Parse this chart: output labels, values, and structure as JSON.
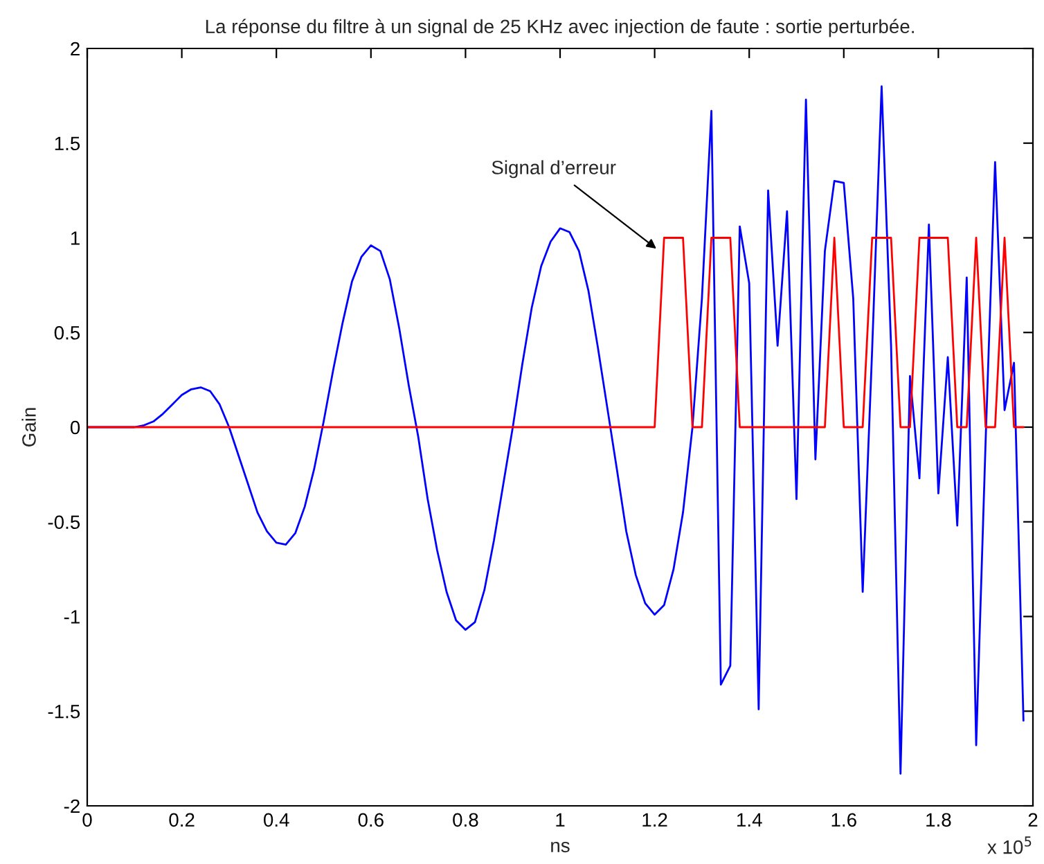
{
  "chart_data": {
    "type": "line",
    "title": "La réponse du filtre à un signal de 25 KHz avec injection de faute : sortie perturbée.",
    "xlabel": "ns",
    "ylabel": "Gain",
    "xlim": [
      0,
      2
    ],
    "xticks": [
      0,
      0.2,
      0.4,
      0.6,
      0.8,
      1,
      1.2,
      1.4,
      1.6,
      1.8,
      2
    ],
    "ylim": [
      -2,
      2
    ],
    "yticks": [
      -2,
      -1.5,
      -1,
      -0.5,
      0,
      0.5,
      1,
      1.5,
      2
    ],
    "grid": false,
    "line_style": "solid",
    "marker": "none",
    "annotations": [
      {
        "text": "Signal d’erreur",
        "x": 1.21,
        "y": 0.93
      },
      "x 10$^{5}$"
    ],
    "series": [
      {
        "color": "#0000ff",
        "x": [
          0,
          0.1,
          0.12,
          0.14,
          0.16,
          0.18,
          0.2,
          0.22,
          0.24,
          0.26,
          0.28,
          0.3,
          0.32,
          0.34,
          0.36,
          0.38,
          0.4,
          0.42,
          0.44,
          0.46,
          0.48,
          0.5,
          0.52,
          0.54,
          0.56,
          0.58,
          0.6,
          0.62,
          0.64,
          0.66,
          0.68,
          0.7,
          0.72,
          0.74,
          0.76,
          0.78,
          0.8,
          0.82,
          0.84,
          0.86,
          0.88,
          0.9,
          0.92,
          0.94,
          0.96,
          0.98,
          1,
          1.02,
          1.04,
          1.06,
          1.08,
          1.1,
          1.12,
          1.14,
          1.16,
          1.18,
          1.2,
          1.22,
          1.24,
          1.26,
          1.28,
          1.3,
          1.32,
          1.34,
          1.36,
          1.38,
          1.4,
          1.42,
          1.44,
          1.46,
          1.48,
          1.5,
          1.52,
          1.54,
          1.56,
          1.58,
          1.6,
          1.62,
          1.64,
          1.66,
          1.68,
          1.7,
          1.72,
          1.74,
          1.76,
          1.78,
          1.8,
          1.82,
          1.84,
          1.86,
          1.88,
          1.9,
          1.92,
          1.94,
          1.96,
          1.98
        ],
        "values": [
          0,
          0,
          0.01,
          0.03,
          0.07,
          0.12,
          0.17,
          0.2,
          0.21,
          0.19,
          0.12,
          0,
          -0.15,
          -0.3,
          -0.45,
          -0.55,
          -0.61,
          -0.62,
          -0.56,
          -0.42,
          -0.22,
          0.03,
          0.3,
          0.55,
          0.77,
          0.9,
          0.96,
          0.93,
          0.78,
          0.52,
          0.22,
          -0.05,
          -0.38,
          -0.65,
          -0.87,
          -1.02,
          -1.07,
          -1.03,
          -0.86,
          -0.6,
          -0.3,
          0,
          0.33,
          0.63,
          0.85,
          0.98,
          1.05,
          1.03,
          0.93,
          0.72,
          0.42,
          0.1,
          -0.22,
          -0.55,
          -0.78,
          -0.93,
          -0.99,
          -0.94,
          -0.75,
          -0.45,
          0,
          0.68,
          1.67,
          -1.36,
          -1.26,
          1.06,
          0.76,
          -1.49,
          1.25,
          0.43,
          1.14,
          -0.38,
          1.73,
          -0.17,
          0.93,
          1.3,
          1.29,
          0.68,
          -0.87,
          0.41,
          1.8,
          0.43,
          -1.83,
          0.27,
          -0.27,
          1.07,
          -0.35,
          0.37,
          -0.52,
          0.79,
          -1.68,
          -0.07,
          1.4,
          0.09,
          0.34,
          -1.55
        ]
      },
      {
        "color": "#ff0000",
        "x": [
          0,
          1.2,
          1.22,
          1.26,
          1.28,
          1.3,
          1.32,
          1.36,
          1.38,
          1.56,
          1.58,
          1.6,
          1.64,
          1.66,
          1.7,
          1.72,
          1.74,
          1.76,
          1.82,
          1.84,
          1.86,
          1.88,
          1.9,
          1.92,
          1.94,
          1.96,
          1.98
        ],
        "values": [
          0,
          0,
          1,
          1,
          0,
          0,
          1,
          1,
          0,
          0,
          1,
          0,
          0,
          1,
          1,
          0,
          0,
          1,
          1,
          0,
          0,
          1,
          0,
          0,
          1,
          0,
          0
        ]
      }
    ]
  }
}
